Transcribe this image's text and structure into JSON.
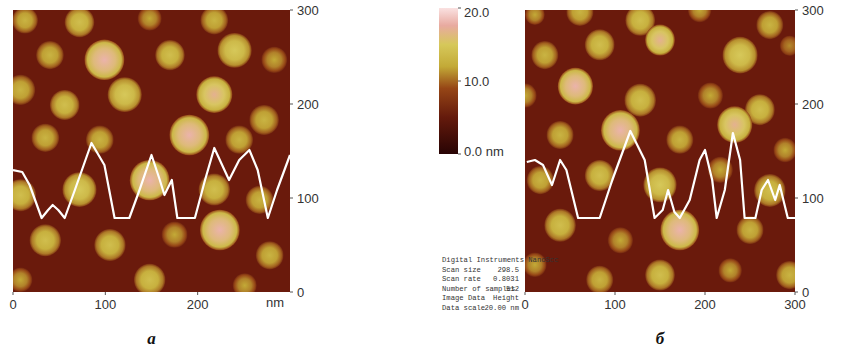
{
  "chart_data": [
    {
      "type": "afm_height_map",
      "title": "а",
      "xlabel": "nm",
      "xlim": [
        0,
        300
      ],
      "ylim": [
        0,
        300
      ],
      "xticks": [
        0,
        100,
        200
      ],
      "yticks": [
        0,
        100,
        200,
        300
      ],
      "particles": {
        "x": [
          13,
          72,
          148,
          218,
          40,
          99,
          170,
          240,
          283,
          8,
          56,
          121,
          218,
          272,
          35,
          94,
          191,
          245,
          8,
          72,
          148,
          218,
          267,
          35,
          105,
          175,
          224,
          278,
          8,
          148,
          251
        ],
        "y": [
          289,
          287,
          291,
          289,
          252,
          247,
          252,
          257,
          247,
          215,
          199,
          210,
          210,
          183,
          164,
          162,
          167,
          162,
          103,
          109,
          119,
          109,
          98,
          55,
          50,
          61,
          66,
          39,
          13,
          13,
          7
        ],
        "diameter": [
          28,
          32,
          26,
          30,
          30,
          43,
          32,
          37,
          28,
          32,
          32,
          37,
          39,
          32,
          30,
          30,
          43,
          30,
          34,
          37,
          43,
          34,
          30,
          34,
          34,
          28,
          43,
          30,
          26,
          34,
          26
        ],
        "height": [
          13,
          14,
          12,
          13,
          13,
          18,
          14,
          15,
          12,
          13,
          14,
          15,
          17,
          13,
          13,
          13,
          18,
          13,
          14,
          15,
          18,
          14,
          13,
          14,
          14,
          12,
          18,
          13,
          12,
          14,
          12
        ]
      },
      "profile": {
        "x": [
          0,
          10,
          18,
          31,
          38,
          43,
          49,
          56,
          67,
          85,
          99,
          110,
          126,
          137,
          150,
          159,
          164,
          172,
          178,
          197,
          208,
          218,
          229,
          234,
          245,
          256,
          265,
          276,
          286,
          300
        ],
        "values": [
          12,
          11.6,
          9,
          2.4,
          4,
          5,
          4,
          2.4,
          8,
          17.4,
          13,
          2.4,
          2.4,
          8,
          15,
          10,
          7,
          10,
          2.4,
          2.4,
          10,
          16.4,
          12,
          10,
          14,
          16,
          12,
          2.4,
          8,
          15
        ],
        "ylim": [
          0,
          20
        ],
        "color": "#ffffff"
      }
    },
    {
      "type": "afm_height_map",
      "title": "б",
      "xlim": [
        0,
        300
      ],
      "ylim": [
        0,
        300
      ],
      "xticks": [
        0,
        100,
        200,
        300
      ],
      "yticks": [
        0,
        100,
        200,
        300
      ],
      "particles": {
        "x": [
          11,
          61,
          128,
          194,
          272,
          22,
          83,
          150,
          239,
          294,
          0,
          56,
          128,
          206,
          261,
          39,
          106,
          172,
          233,
          289,
          17,
          83,
          150,
          217,
          272,
          39,
          106,
          172,
          250,
          11,
          83,
          150,
          228,
          294
        ],
        "y": [
          295,
          298,
          289,
          300,
          284,
          252,
          263,
          268,
          252,
          262,
          209,
          219,
          204,
          209,
          194,
          167,
          172,
          162,
          178,
          151,
          119,
          124,
          114,
          130,
          108,
          71,
          55,
          66,
          66,
          29,
          13,
          18,
          23,
          18
        ],
        "diameter": [
          22,
          30,
          33,
          26,
          30,
          30,
          33,
          33,
          39,
          22,
          26,
          39,
          35,
          28,
          33,
          30,
          43,
          30,
          39,
          26,
          30,
          33,
          37,
          28,
          35,
          35,
          28,
          43,
          30,
          26,
          30,
          33,
          26,
          30
        ],
        "height": [
          12,
          13,
          14,
          12,
          13,
          13,
          14,
          17,
          15,
          11,
          12,
          18,
          14,
          12,
          14,
          13,
          18,
          13,
          17,
          12,
          13,
          14,
          15,
          12,
          14,
          14,
          12,
          18,
          13,
          12,
          13,
          14,
          12,
          13
        ]
      },
      "profile": {
        "x": [
          2,
          11,
          20,
          30,
          39,
          46,
          59,
          83,
          97,
          117,
          133,
          144,
          153,
          159,
          166,
          172,
          183,
          194,
          200,
          208,
          213,
          222,
          231,
          239,
          244,
          256,
          263,
          270,
          278,
          283,
          292,
          300
        ],
        "values": [
          13.6,
          14,
          13,
          9,
          14,
          12,
          2.4,
          2.4,
          10,
          19.8,
          14,
          2.4,
          4,
          8,
          3.6,
          2.4,
          6,
          14,
          16,
          10,
          2.4,
          8,
          19.4,
          14,
          2.4,
          2.4,
          8,
          10,
          6,
          9,
          2.4,
          2.4
        ],
        "ylim": [
          0,
          20
        ],
        "color": "#ffffff"
      }
    }
  ],
  "colorbar": {
    "range": [
      0,
      20
    ],
    "ticks": [
      {
        "value": 0,
        "label": "0.0 nm"
      },
      {
        "value": 10,
        "label": "10.0"
      },
      {
        "value": 20,
        "label": "20.0"
      }
    ]
  },
  "info": [
    {
      "key": "Digital Instruments NanoScc"
    },
    {
      "key": "Scan size",
      "value": "298.5"
    },
    {
      "key": "Scan rate",
      "value": "0.8031"
    },
    {
      "key": "Number of samples",
      "value": "512"
    },
    {
      "key": "Image Data",
      "value": "Height"
    },
    {
      "key": "Data scale",
      "value": "20.00 nm"
    }
  ]
}
